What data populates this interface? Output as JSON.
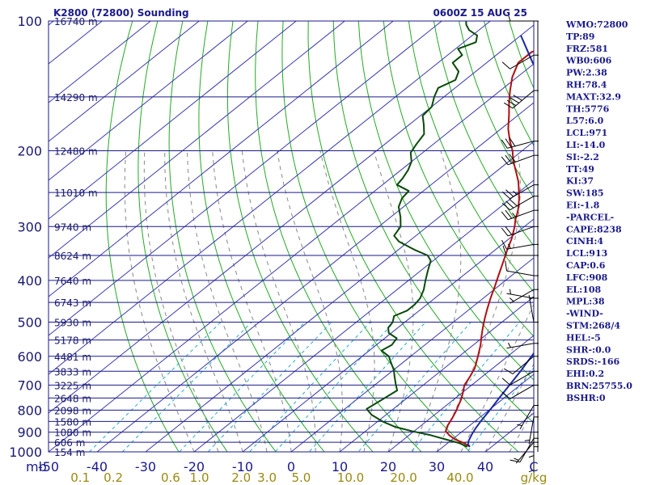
{
  "header": {
    "station_title": "K2800 (72800) Sounding",
    "time": "0600Z 15 AUG 25"
  },
  "colors": {
    "background": "#ffffff",
    "isobar": "#1a1a8c",
    "isotherm": "#3a3ab0",
    "dry_adiabat": "#22aa22",
    "moist_adiabat": "#888888",
    "mixing_ratio": "#22aacc",
    "temperature": "#b01010",
    "dewpoint": "#0a4a0a",
    "parcel": "#1a2aa0",
    "text": "#1a1a8c"
  },
  "chart_data": {
    "type": "line",
    "skewt": true,
    "xlim": [
      -50,
      50
    ],
    "ylim": [
      1000,
      100
    ],
    "yscale": "log",
    "y_ticks": [
      {
        "label": "100",
        "p": 100
      },
      {
        "label": "200",
        "p": 200
      },
      {
        "label": "300",
        "p": 300
      },
      {
        "label": "400",
        "p": 400
      },
      {
        "label": "500",
        "p": 500
      },
      {
        "label": "600",
        "p": 600
      },
      {
        "label": "700",
        "p": 700
      },
      {
        "label": "800",
        "p": 800
      },
      {
        "label": "900",
        "p": 900
      },
      {
        "label": "1000",
        "p": 1000
      }
    ],
    "y_axis_unit": "mb",
    "x_ticks": [
      {
        "label": "-50",
        "t": -50
      },
      {
        "label": "-40",
        "t": -40
      },
      {
        "label": "-30",
        "t": -30
      },
      {
        "label": "-20",
        "t": -20
      },
      {
        "label": "-10",
        "t": -10
      },
      {
        "label": "0",
        "t": 0
      },
      {
        "label": "10",
        "t": 10
      },
      {
        "label": "20",
        "t": 20
      },
      {
        "label": "30",
        "t": 30
      },
      {
        "label": "40",
        "t": 40
      },
      {
        "label": "C",
        "t": 50
      }
    ],
    "mixing_ratio_labels": [
      "0.1",
      "0.2",
      "0.6",
      "1.0",
      "2.0",
      "3.0",
      "5.0",
      "10.0",
      "20.0",
      "40.0"
    ],
    "mixing_ratio_unit": "g/kg",
    "height_labels": [
      {
        "label": "16740 m",
        "p": 100
      },
      {
        "label": "14290 m",
        "p": 150
      },
      {
        "label": "12480 m",
        "p": 200
      },
      {
        "label": "11010 m",
        "p": 250
      },
      {
        "label": "9740 m",
        "p": 300
      },
      {
        "label": "8624 m",
        "p": 350
      },
      {
        "label": "7640 m",
        "p": 400
      },
      {
        "label": "6743 m",
        "p": 450
      },
      {
        "label": "5930 m",
        "p": 500
      },
      {
        "label": "5178 m",
        "p": 550
      },
      {
        "label": "4481 m",
        "p": 600
      },
      {
        "label": "3833 m",
        "p": 650
      },
      {
        "label": "3225 m",
        "p": 700
      },
      {
        "label": "2648 m",
        "p": 750
      },
      {
        "label": "2098 m",
        "p": 800
      },
      {
        "label": "1580 m",
        "p": 850
      },
      {
        "label": "1080 m",
        "p": 900
      },
      {
        "label": "606 m",
        "p": 950
      },
      {
        "label": "154 m",
        "p": 1000
      }
    ],
    "series": [
      {
        "key": "temperature",
        "points": [
          [
            973,
            35.5
          ],
          [
            955,
            33.5
          ],
          [
            935,
            30.5
          ],
          [
            915,
            28.3
          ],
          [
            895,
            26.5
          ],
          [
            870,
            25.5
          ],
          [
            835,
            24.5
          ],
          [
            805,
            23.5
          ],
          [
            780,
            22.5
          ],
          [
            755,
            21.5
          ],
          [
            730,
            20.2
          ],
          [
            700,
            18.5
          ],
          [
            670,
            17.5
          ],
          [
            640,
            16.3
          ],
          [
            615,
            14.8
          ],
          [
            590,
            13.2
          ],
          [
            565,
            11.5
          ],
          [
            540,
            9.5
          ],
          [
            515,
            7.5
          ],
          [
            490,
            5.5
          ],
          [
            465,
            3.5
          ],
          [
            440,
            1.5
          ],
          [
            415,
            -0.5
          ],
          [
            390,
            -2.7
          ],
          [
            365,
            -5.0
          ],
          [
            340,
            -7.5
          ],
          [
            320,
            -9.5
          ],
          [
            300,
            -12.0
          ],
          [
            290,
            -13.5
          ],
          [
            275,
            -15.5
          ],
          [
            260,
            -18.0
          ],
          [
            248,
            -20.3
          ],
          [
            236,
            -22.8
          ],
          [
            224,
            -25.8
          ],
          [
            212,
            -29.0
          ],
          [
            200,
            -32.0
          ],
          [
            190,
            -35.0
          ],
          [
            178,
            -38.5
          ],
          [
            165,
            -42.0
          ],
          [
            155,
            -45.0
          ],
          [
            145,
            -48.0
          ],
          [
            135,
            -51.0
          ],
          [
            125,
            -53.5
          ],
          [
            118,
            -53.5
          ],
          [
            113,
            -50.5
          ],
          [
            108,
            -49.5
          ],
          [
            104,
            -50.5
          ],
          [
            100,
            -51.5
          ]
        ]
      },
      {
        "key": "dewpoint",
        "points": [
          [
            973,
            35.0
          ],
          [
            955,
            32.5
          ],
          [
            935,
            28.5
          ],
          [
            915,
            24.5
          ],
          [
            895,
            19.5
          ],
          [
            875,
            15.0
          ],
          [
            850,
            11.0
          ],
          [
            820,
            7.0
          ],
          [
            795,
            4.5
          ],
          [
            770,
            5.0
          ],
          [
            745,
            5.5
          ],
          [
            720,
            6.0
          ],
          [
            695,
            4.0
          ],
          [
            670,
            2.0
          ],
          [
            645,
            0.0
          ],
          [
            620,
            -2.5
          ],
          [
            600,
            -4.5
          ],
          [
            582,
            -7.5
          ],
          [
            565,
            -6.8
          ],
          [
            545,
            -7.5
          ],
          [
            530,
            -10.5
          ],
          [
            515,
            -12.0
          ],
          [
            500,
            -12.5
          ],
          [
            484,
            -13.8
          ],
          [
            470,
            -12.5
          ],
          [
            455,
            -12.5
          ],
          [
            440,
            -13.0
          ],
          [
            420,
            -14.5
          ],
          [
            400,
            -16.5
          ],
          [
            380,
            -18.5
          ],
          [
            360,
            -20.5
          ],
          [
            350,
            -22.5
          ],
          [
            340,
            -26.5
          ],
          [
            325,
            -32.0
          ],
          [
            315,
            -34.5
          ],
          [
            300,
            -35.5
          ],
          [
            285,
            -38.0
          ],
          [
            270,
            -41.0
          ],
          [
            258,
            -42.5
          ],
          [
            248,
            -43.0
          ],
          [
            240,
            -47.0
          ],
          [
            232,
            -47.5
          ],
          [
            222,
            -48.5
          ],
          [
            212,
            -50.0
          ],
          [
            202,
            -52.5
          ],
          [
            193,
            -53.5
          ],
          [
            183,
            -54.5
          ],
          [
            174,
            -57.0
          ],
          [
            166,
            -59.5
          ],
          [
            158,
            -60.0
          ],
          [
            150,
            -62.0
          ],
          [
            143,
            -63.5
          ],
          [
            137,
            -62.0
          ],
          [
            131,
            -63.5
          ],
          [
            125,
            -67.0
          ],
          [
            120,
            -67.0
          ],
          [
            116,
            -69.5
          ],
          [
            112,
            -67.5
          ],
          [
            108,
            -69.0
          ],
          [
            105,
            -72.0
          ],
          [
            102,
            -74.0
          ],
          [
            100,
            -75.0
          ]
        ]
      },
      {
        "key": "parcel",
        "points": [
          [
            973,
            35.5
          ],
          [
            960,
            34.5
          ],
          [
            945,
            33.8
          ],
          [
            913,
            32.8
          ],
          [
            880,
            31.9
          ],
          [
            850,
            31.2
          ],
          [
            800,
            30.2
          ],
          [
            750,
            29.0
          ],
          [
            700,
            27.8
          ],
          [
            650,
            26.5
          ],
          [
            600,
            24.9
          ],
          [
            550,
            23.2
          ],
          [
            500,
            21.2
          ],
          [
            450,
            18.8
          ],
          [
            400,
            15.8
          ],
          [
            350,
            11.8
          ],
          [
            300,
            6.2
          ],
          [
            250,
            -2.8
          ],
          [
            200,
            -16.5
          ],
          [
            175,
            -26.0
          ],
          [
            150,
            -37.5
          ],
          [
            125,
            -50.5
          ],
          [
            108,
            -60.0
          ]
        ]
      }
    ],
    "wind_barbs": [
      {
        "p": 100,
        "dir": 270,
        "spd": 5
      },
      {
        "p": 120,
        "dir": 240,
        "spd": 10
      },
      {
        "p": 145,
        "dir": 230,
        "spd": 40
      },
      {
        "p": 190,
        "dir": 255,
        "spd": 30
      },
      {
        "p": 205,
        "dir": 250,
        "spd": 30
      },
      {
        "p": 240,
        "dir": 240,
        "spd": 25
      },
      {
        "p": 255,
        "dir": 240,
        "spd": 30
      },
      {
        "p": 275,
        "dir": 250,
        "spd": 25
      },
      {
        "p": 300,
        "dir": 250,
        "spd": 20
      },
      {
        "p": 330,
        "dir": 260,
        "spd": 15
      },
      {
        "p": 350,
        "dir": 270,
        "spd": 10
      },
      {
        "p": 390,
        "dir": 280,
        "spd": 10
      },
      {
        "p": 420,
        "dir": 240,
        "spd": 5
      },
      {
        "p": 440,
        "dir": 280,
        "spd": 5
      },
      {
        "p": 500,
        "dir": 350,
        "spd": 5
      },
      {
        "p": 560,
        "dir": 260,
        "spd": 5
      },
      {
        "p": 600,
        "dir": 230,
        "spd": 10
      },
      {
        "p": 650,
        "dir": 240,
        "spd": 10
      },
      {
        "p": 700,
        "dir": 240,
        "spd": 10
      },
      {
        "p": 780,
        "dir": 210,
        "spd": 5
      },
      {
        "p": 830,
        "dir": 190,
        "spd": 5
      },
      {
        "p": 900,
        "dir": 180,
        "spd": 5
      },
      {
        "p": 930,
        "dir": 210,
        "spd": 10
      },
      {
        "p": 950,
        "dir": 220,
        "spd": 5
      },
      {
        "p": 973,
        "dir": 180,
        "spd": 5
      }
    ]
  },
  "indices": [
    "WMO:72800",
    "TP:89",
    "FRZ:581",
    "WB0:606",
    "PW:2.38",
    "RH:78.4",
    "MAXT:32.9",
    "TH:5776",
    "L57:6.0",
    "LCL:971",
    "LI:-14.0",
    "SI:-2.2",
    "TT:49",
    "KI:37",
    "SW:185",
    "EI:-1.8",
    "-PARCEL-",
    "CAPE:8238",
    "CINH:4",
    "LCL:913",
    "CAP:0.6",
    "LFC:908",
    "EL:108",
    "MPL:38",
    "-WIND-",
    "STM:268/4",
    "HEL:-5",
    "SHR-:0.0",
    "SRDS:-166",
    "EHI:0.2",
    "BRN:25755.0",
    "BSHR:0"
  ]
}
